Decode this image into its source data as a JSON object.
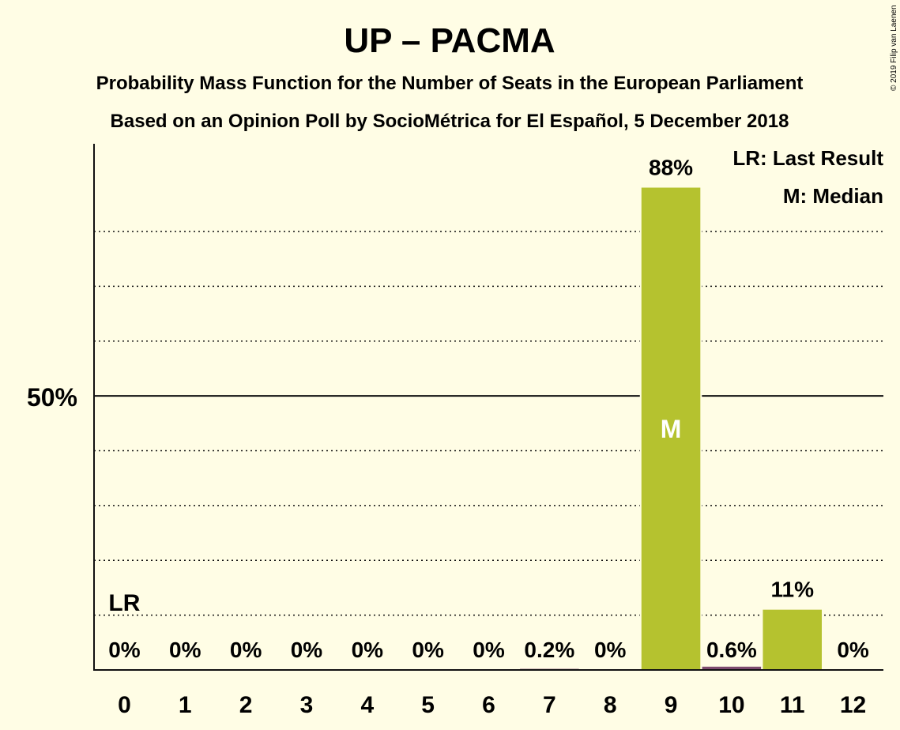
{
  "title": "UP – PACMA",
  "subtitle1": "Probability Mass Function for the Number of Seats in the European Parliament",
  "subtitle2": "Based on an Opinion Poll by SocioMétrica for El Español, 5 December 2018",
  "copyright": "© 2019 Filip van Laenen",
  "legend": {
    "last_result": "LR: Last Result",
    "median": "M: Median"
  },
  "colors": {
    "background": "#FFFDE5",
    "bar": "#B5C22F",
    "bar_small": "#7D4A6E",
    "text": "#111111"
  },
  "chart_data": {
    "type": "bar",
    "categories": [
      "0",
      "1",
      "2",
      "3",
      "4",
      "5",
      "6",
      "7",
      "8",
      "9",
      "10",
      "11",
      "12"
    ],
    "values": [
      0,
      0,
      0,
      0,
      0,
      0,
      0,
      0.2,
      0,
      88,
      0.6,
      11,
      0
    ],
    "value_labels": [
      "0%",
      "0%",
      "0%",
      "0%",
      "0%",
      "0%",
      "0%",
      "0.2%",
      "0%",
      "88%",
      "0.6%",
      "11%",
      "0%"
    ],
    "ylim": [
      0,
      96
    ],
    "y_tick_label": "50%",
    "y_tick_value": 50,
    "gridlines": [
      10,
      20,
      30,
      40,
      60,
      70,
      80
    ],
    "last_result_seat": "0",
    "last_result_label": "LR",
    "median_seat": "9",
    "median_label": "M"
  }
}
